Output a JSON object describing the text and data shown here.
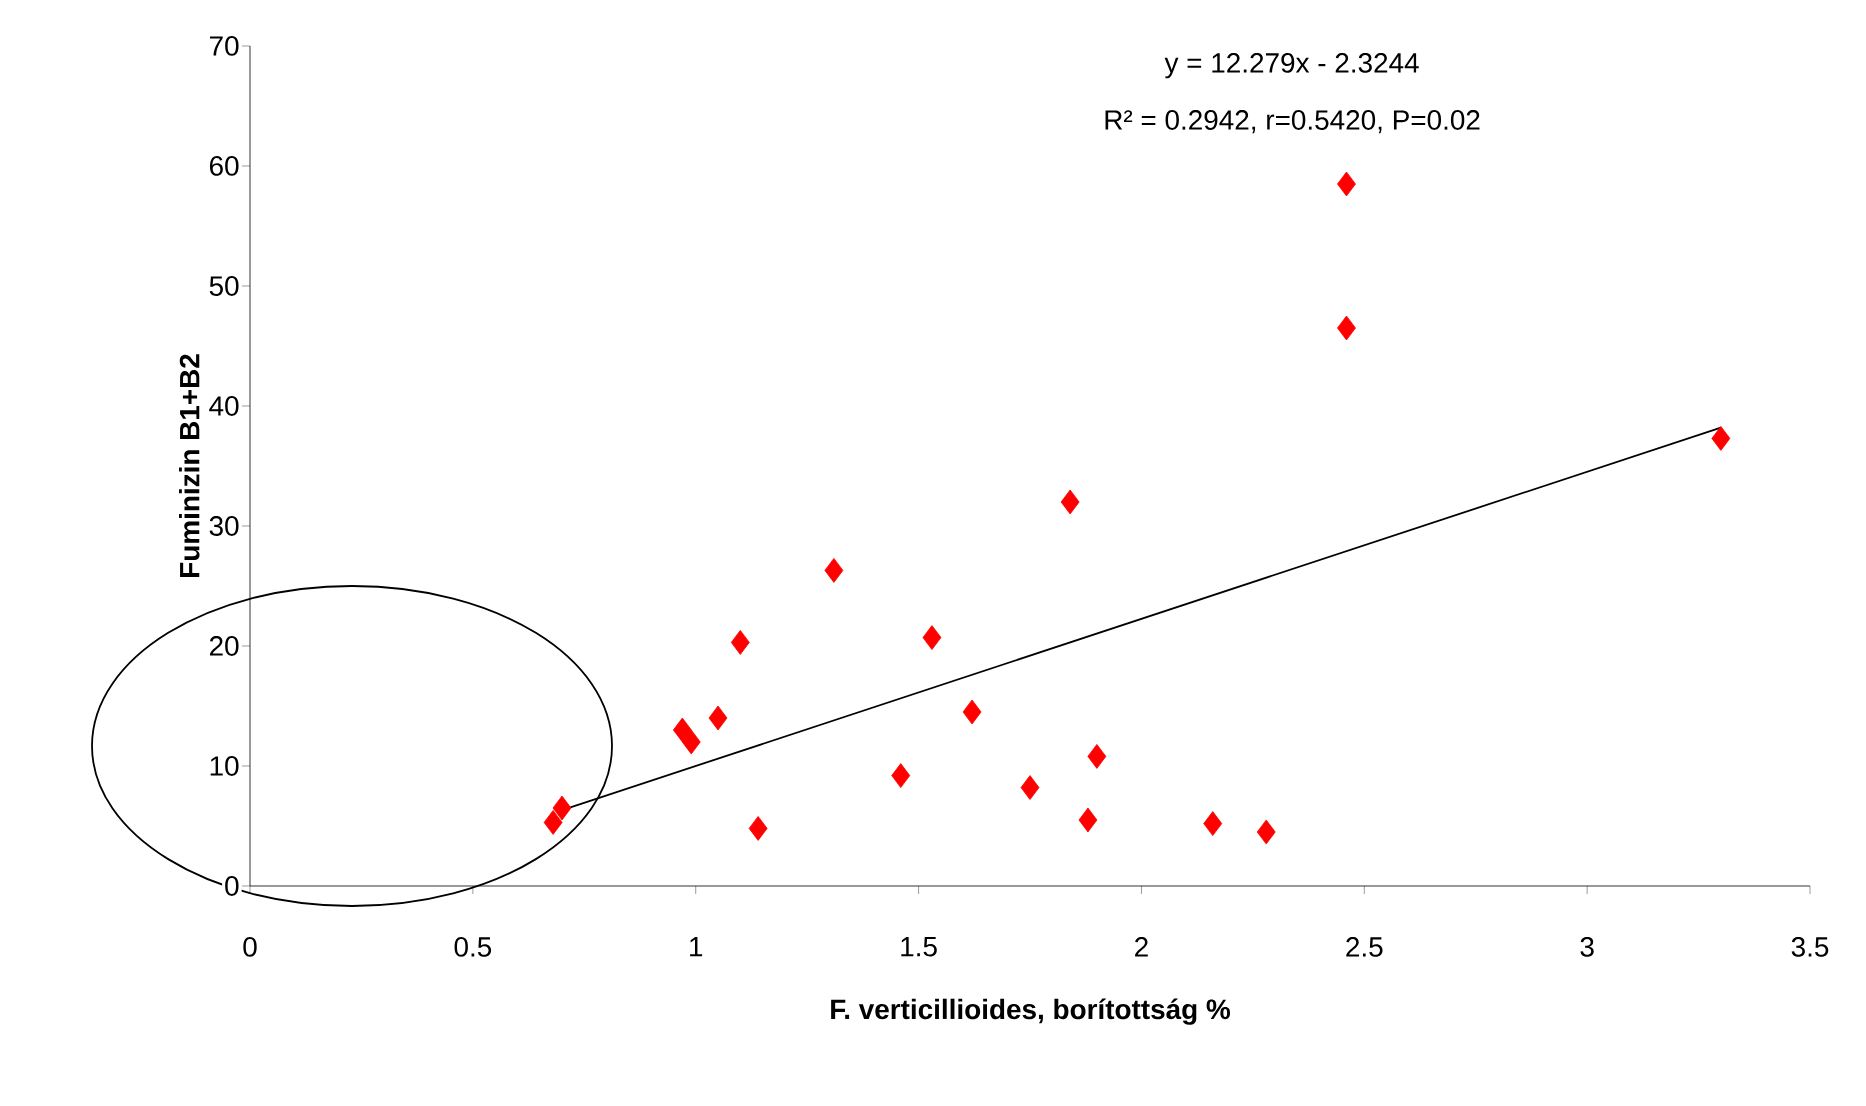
{
  "chart_data": {
    "type": "scatter",
    "xlabel": "F. verticillioides, borítottság %",
    "ylabel": "Fuminizin B1+B2",
    "annotations": [
      "y = 12.279x - 2.3244",
      "R² = 0.2942, r=0.5420, P=0.02"
    ],
    "xlim": [
      0,
      3.5
    ],
    "ylim": [
      0,
      70
    ],
    "xticks": [
      0,
      0.5,
      1,
      1.5,
      2,
      2.5,
      3,
      3.5
    ],
    "yticks": [
      0,
      10,
      20,
      30,
      40,
      50,
      60,
      70
    ],
    "marker": "diamond",
    "series": [
      {
        "color": "#ff0000",
        "x": [
          0.68,
          0.7,
          0.97,
          0.99,
          1.05,
          1.1,
          1.14,
          1.31,
          1.46,
          1.53,
          1.62,
          1.75,
          1.84,
          1.88,
          1.9,
          2.16,
          2.28,
          2.46,
          2.46,
          3.3
        ],
        "values": [
          5.3,
          6.5,
          13,
          12,
          14,
          20.3,
          4.8,
          26.3,
          9.2,
          20.7,
          14.5,
          8.2,
          32,
          5.5,
          10.8,
          5.2,
          4.5,
          58.5,
          46.5,
          37.3
        ]
      },
      {
        "type": "line",
        "color": "#000000",
        "marker": "none",
        "x": [
          0.69,
          3.3
        ],
        "values": [
          6.2,
          38.2
        ]
      }
    ]
  }
}
